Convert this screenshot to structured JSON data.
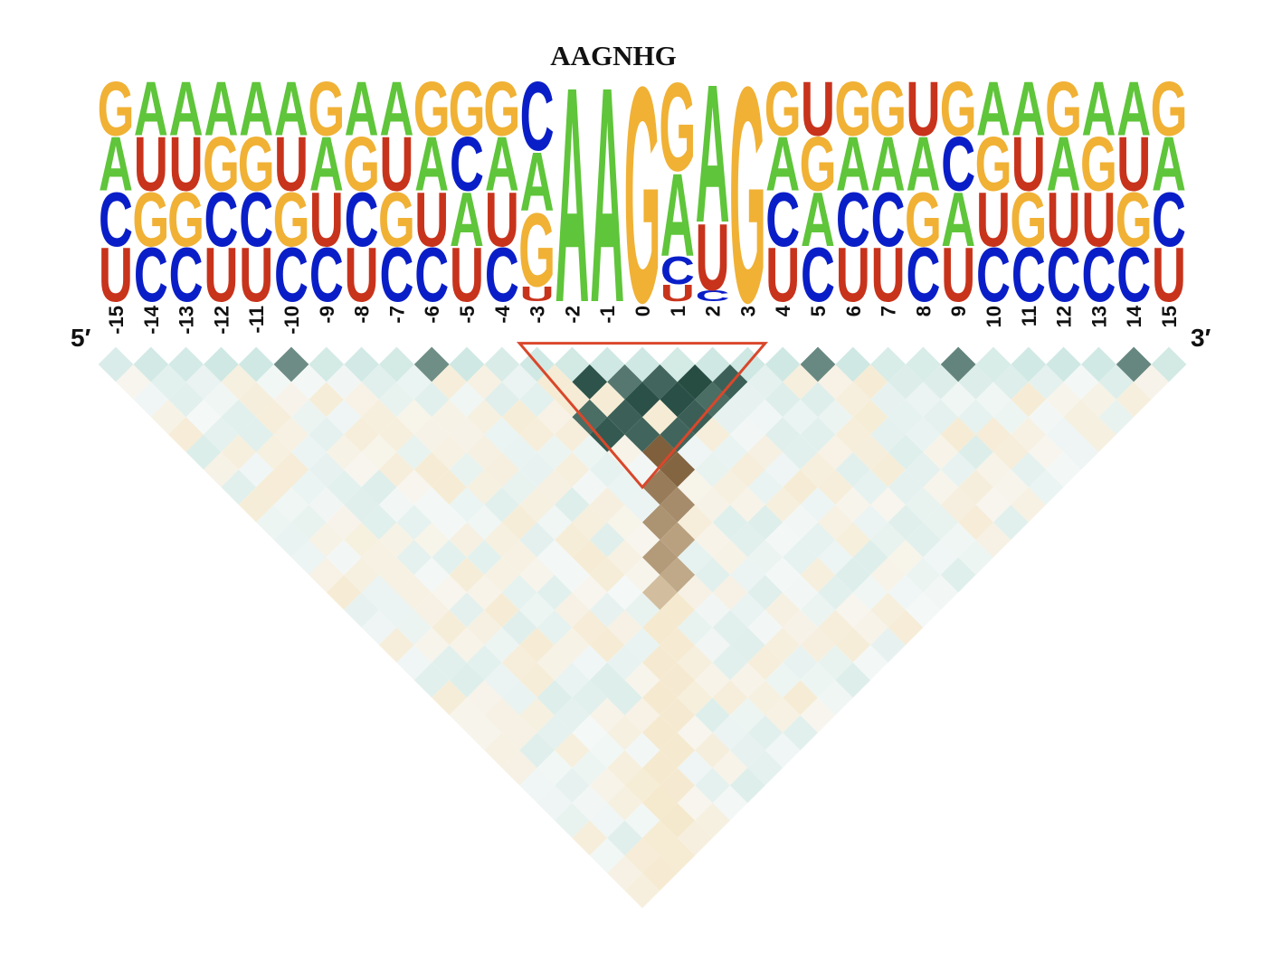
{
  "title": "AAGNHG",
  "end_labels": {
    "five_prime": "5′",
    "three_prime": "3′"
  },
  "colors": {
    "A": "#5fc53a",
    "C": "#0a1ec8",
    "G": "#f0b135",
    "U": "#c8331c",
    "highlight_outline": "#d9472b",
    "positive_strong": "#163d33",
    "positive_light": "#cfe8e3",
    "negative_strong": "#5a3410",
    "negative_light": "#f5e7c8"
  },
  "positions": [
    "-15",
    "-14",
    "-13",
    "-12",
    "-11",
    "-10",
    "-9",
    "-8",
    "-7",
    "-6",
    "-5",
    "-4",
    "-3",
    "-2",
    "-1",
    "0",
    "1",
    "2",
    "3",
    "4",
    "5",
    "6",
    "7",
    "8",
    "9",
    "10",
    "11",
    "12",
    "13",
    "14",
    "15"
  ],
  "logo": [
    [
      [
        "U",
        1
      ],
      [
        "C",
        1
      ],
      [
        "A",
        1
      ],
      [
        "G",
        1
      ]
    ],
    [
      [
        "C",
        1
      ],
      [
        "G",
        1
      ],
      [
        "U",
        1
      ],
      [
        "A",
        1
      ]
    ],
    [
      [
        "C",
        1
      ],
      [
        "G",
        1
      ],
      [
        "U",
        1
      ],
      [
        "A",
        1
      ]
    ],
    [
      [
        "U",
        1
      ],
      [
        "C",
        1
      ],
      [
        "G",
        1
      ],
      [
        "A",
        1
      ]
    ],
    [
      [
        "U",
        1
      ],
      [
        "C",
        1
      ],
      [
        "G",
        1
      ],
      [
        "A",
        1
      ]
    ],
    [
      [
        "C",
        1
      ],
      [
        "G",
        1
      ],
      [
        "U",
        1
      ],
      [
        "A",
        1
      ]
    ],
    [
      [
        "C",
        1
      ],
      [
        "U",
        1
      ],
      [
        "A",
        1
      ],
      [
        "G",
        1
      ]
    ],
    [
      [
        "U",
        1
      ],
      [
        "C",
        1
      ],
      [
        "G",
        1
      ],
      [
        "A",
        1
      ]
    ],
    [
      [
        "C",
        1
      ],
      [
        "G",
        1
      ],
      [
        "U",
        1
      ],
      [
        "A",
        1
      ]
    ],
    [
      [
        "C",
        1
      ],
      [
        "U",
        1
      ],
      [
        "A",
        1
      ],
      [
        "G",
        1
      ]
    ],
    [
      [
        "U",
        1
      ],
      [
        "A",
        1
      ],
      [
        "C",
        1
      ],
      [
        "G",
        1
      ]
    ],
    [
      [
        "C",
        1
      ],
      [
        "U",
        1
      ],
      [
        "A",
        1
      ],
      [
        "G",
        1
      ]
    ],
    [
      [
        "U",
        0.3
      ],
      [
        "G",
        1.5
      ],
      [
        "A",
        1.2
      ],
      [
        "C",
        1.4
      ]
    ],
    [
      [
        "A",
        4
      ]
    ],
    [
      [
        "A",
        4
      ]
    ],
    [
      [
        "G",
        4
      ]
    ],
    [
      [
        "U",
        0.3
      ],
      [
        "C",
        0.5
      ],
      [
        "A",
        1.5
      ],
      [
        "G",
        1.6
      ]
    ],
    [
      [
        "C",
        0.2
      ],
      [
        "U",
        1.2
      ],
      [
        "A",
        2.5
      ]
    ],
    [
      [
        "G",
        4
      ]
    ],
    [
      [
        "U",
        1
      ],
      [
        "C",
        1
      ],
      [
        "A",
        1
      ],
      [
        "G",
        1
      ]
    ],
    [
      [
        "C",
        1
      ],
      [
        "A",
        1
      ],
      [
        "G",
        1
      ],
      [
        "U",
        1
      ]
    ],
    [
      [
        "U",
        1
      ],
      [
        "C",
        1
      ],
      [
        "A",
        1
      ],
      [
        "G",
        1
      ]
    ],
    [
      [
        "U",
        1
      ],
      [
        "C",
        1
      ],
      [
        "A",
        1
      ],
      [
        "G",
        1
      ]
    ],
    [
      [
        "C",
        1
      ],
      [
        "G",
        1
      ],
      [
        "A",
        1
      ],
      [
        "U",
        1
      ]
    ],
    [
      [
        "U",
        1
      ],
      [
        "A",
        1
      ],
      [
        "C",
        1
      ],
      [
        "G",
        1
      ]
    ],
    [
      [
        "C",
        1
      ],
      [
        "U",
        1
      ],
      [
        "G",
        1
      ],
      [
        "A",
        1
      ]
    ],
    [
      [
        "C",
        1
      ],
      [
        "G",
        1
      ],
      [
        "U",
        1
      ],
      [
        "A",
        1
      ]
    ],
    [
      [
        "C",
        1
      ],
      [
        "U",
        1
      ],
      [
        "A",
        1
      ],
      [
        "G",
        1
      ]
    ],
    [
      [
        "C",
        1
      ],
      [
        "U",
        1
      ],
      [
        "G",
        1
      ],
      [
        "A",
        1
      ]
    ],
    [
      [
        "C",
        1
      ],
      [
        "G",
        1
      ],
      [
        "U",
        1
      ],
      [
        "A",
        1
      ]
    ],
    [
      [
        "U",
        1
      ],
      [
        "C",
        1
      ],
      [
        "A",
        1
      ],
      [
        "G",
        1
      ]
    ]
  ],
  "highlight_region": {
    "from_position": "-3",
    "to_position": "3",
    "label": ""
  }
}
